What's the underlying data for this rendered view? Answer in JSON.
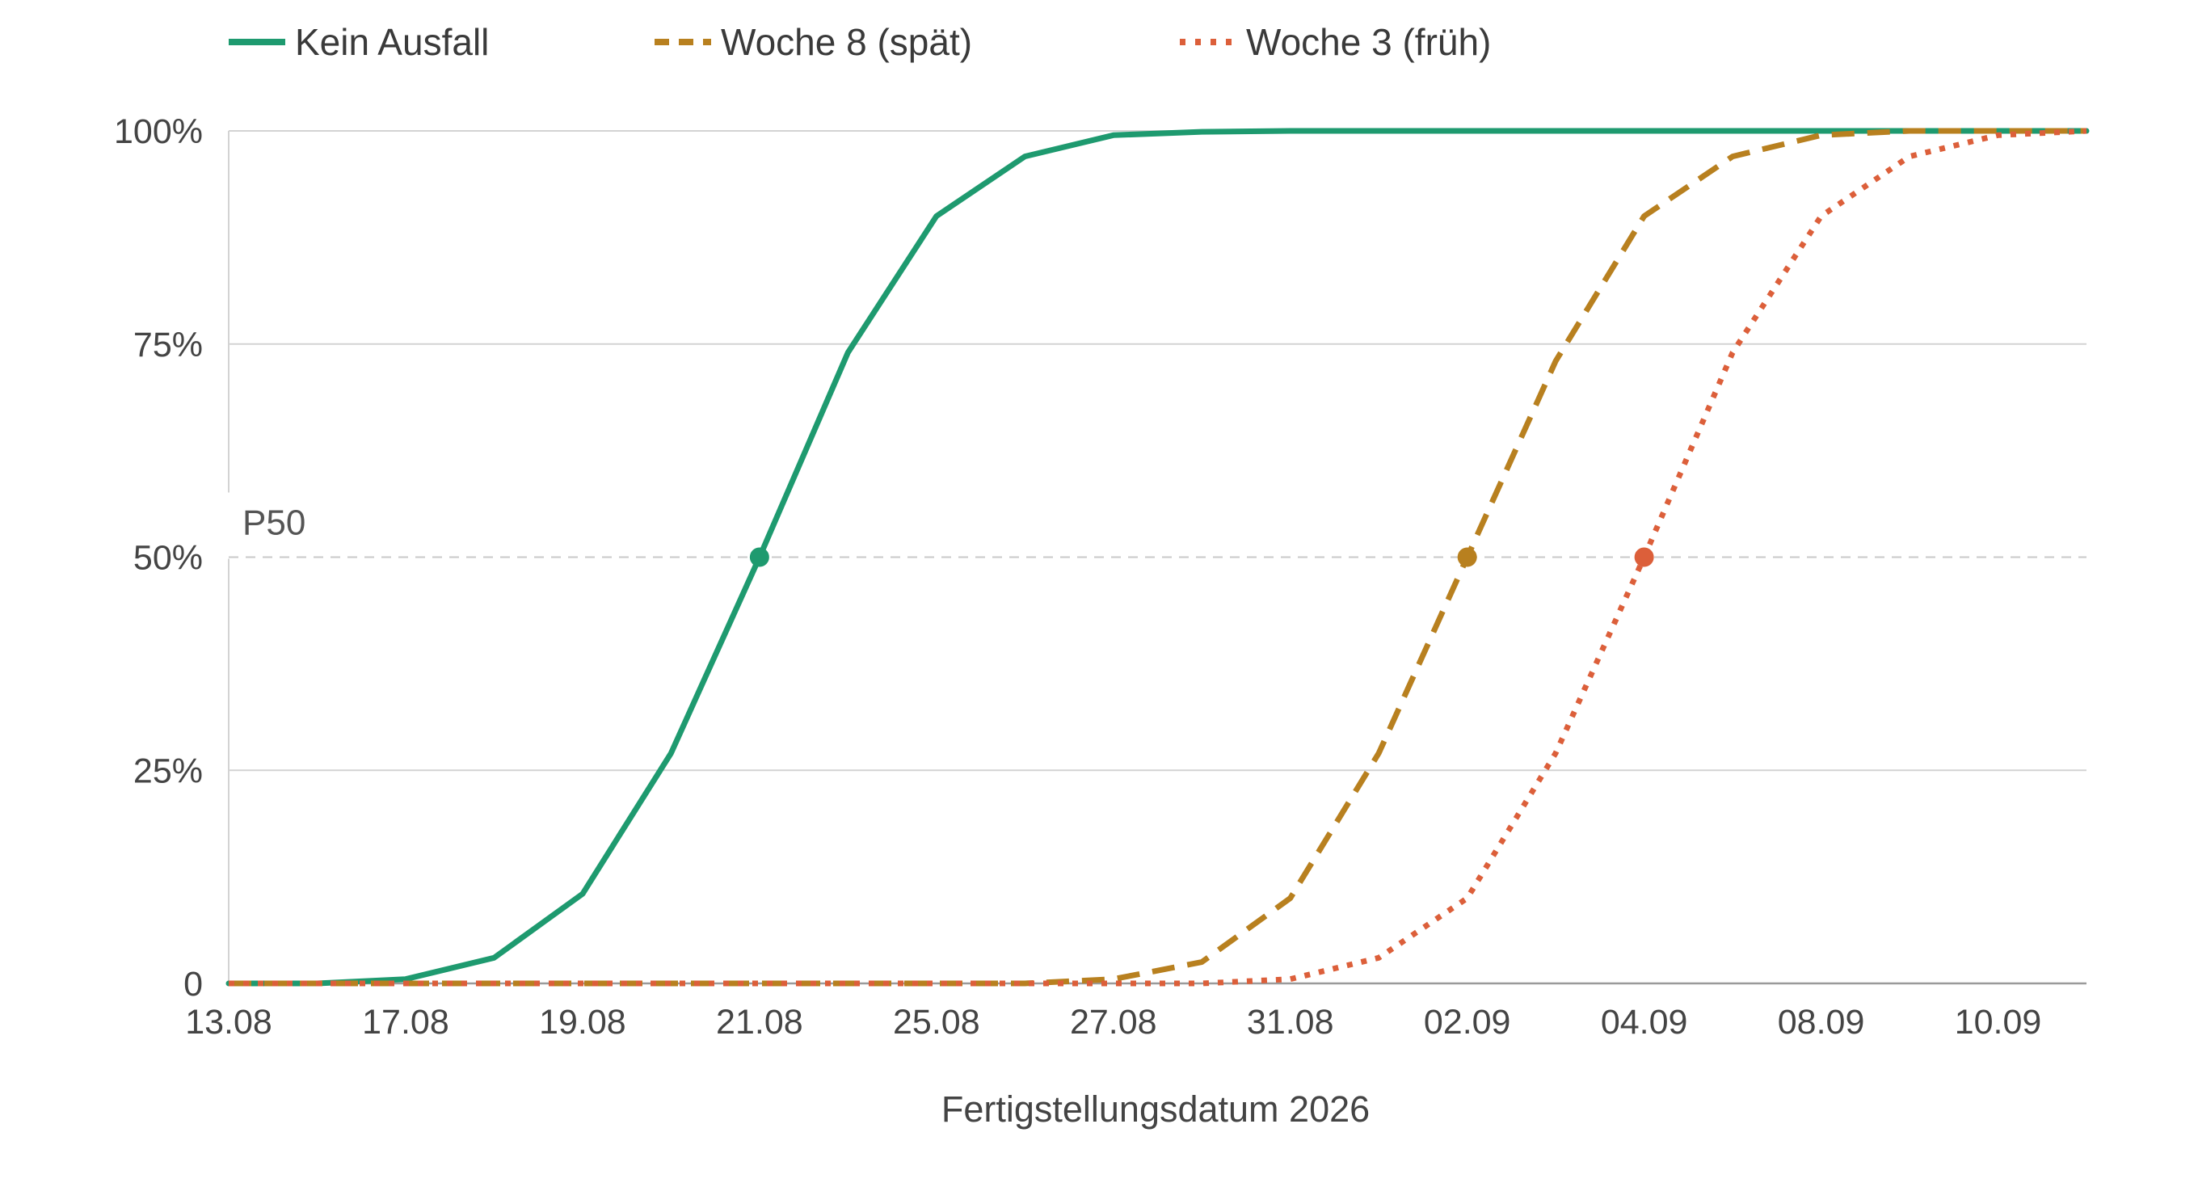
{
  "chart_data": {
    "type": "line",
    "title": "",
    "xlabel": "Fertigstellungsdatum 2026",
    "ylabel": "",
    "x_tick_labels": [
      "13.08",
      "17.08",
      "19.08",
      "21.08",
      "25.08",
      "27.08",
      "31.08",
      "02.09",
      "04.09",
      "08.09",
      "10.09"
    ],
    "y_tick_labels": [
      "0",
      "25%",
      "50%",
      "75%",
      "100%"
    ],
    "y_ticks": [
      0,
      25,
      50,
      75,
      100
    ],
    "ylim": [
      0,
      100
    ],
    "grid": true,
    "legend_position": "top",
    "reference_line": {
      "label": "P50",
      "value": 50
    },
    "series": [
      {
        "name": "Kein Ausfall",
        "color": "#1e9a6f",
        "dash": "solid",
        "x": [
          0,
          0.5,
          1,
          1.5,
          2,
          2.5,
          3,
          3.5,
          4,
          4.5,
          5,
          5.5,
          6,
          6.5,
          7,
          7.5,
          8,
          8.5,
          9,
          9.5,
          10,
          10.5
        ],
        "values": [
          0,
          0,
          0.5,
          3,
          10.5,
          27,
          50,
          74,
          90,
          97,
          99.5,
          99.9,
          100,
          100,
          100,
          100,
          100,
          100,
          100,
          100,
          100,
          100
        ],
        "p50_x": 3
      },
      {
        "name": "Woche 8 (spät)",
        "color": "#b8801f",
        "dash": "dashed",
        "x": [
          0,
          0.5,
          1,
          1.5,
          2,
          2.5,
          3,
          3.5,
          4,
          4.5,
          5,
          5.5,
          6,
          6.5,
          7,
          7.5,
          8,
          8.5,
          9,
          9.5,
          10,
          10.5
        ],
        "values": [
          0,
          0,
          0,
          0,
          0,
          0,
          0,
          0,
          0,
          0,
          0.5,
          2.5,
          10,
          27,
          50,
          73,
          90,
          97,
          99.5,
          100,
          100,
          100
        ],
        "p50_x": 7
      },
      {
        "name": "Woche 3 (früh)",
        "color": "#dc5f3a",
        "dash": "dotted",
        "x": [
          0,
          0.5,
          1,
          1.5,
          2,
          2.5,
          3,
          3.5,
          4,
          4.5,
          5,
          5.5,
          6,
          6.5,
          7,
          7.5,
          8,
          8.5,
          9,
          9.5,
          10,
          10.5
        ],
        "values": [
          0,
          0,
          0,
          0,
          0,
          0,
          0,
          0,
          0,
          0,
          0,
          0,
          0.5,
          3,
          10,
          27,
          50,
          74,
          90,
          97,
          99.5,
          100
        ],
        "p50_x": 8
      }
    ]
  }
}
